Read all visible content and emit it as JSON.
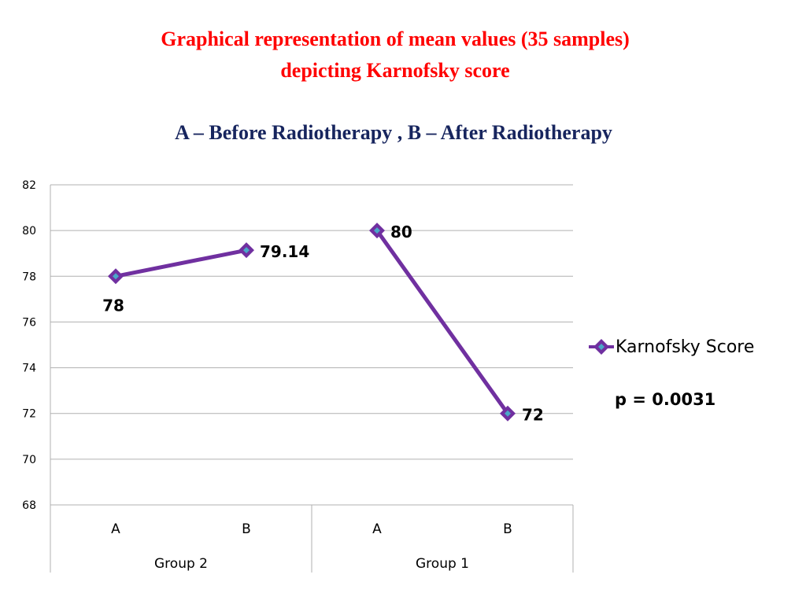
{
  "header": {
    "title_line1": "Graphical representation of mean values (35 samples)",
    "title_line2": "depicting Karnofsky score",
    "subtitle": "A – Before Radiotherapy , B – After Radiotherapy"
  },
  "colors": {
    "title": "#ff0000",
    "subtitle": "#17255e",
    "series_line": "#7030a0",
    "marker_center": "#4aa8c8",
    "gridline": "#b0b0b0"
  },
  "chart_data": {
    "type": "line",
    "ylim": [
      68,
      82
    ],
    "yticks": [
      68,
      70,
      72,
      74,
      76,
      78,
      80,
      82
    ],
    "grid": true,
    "legend_position": "right",
    "groups": [
      {
        "name": "Group 2",
        "categories": [
          "A",
          "B"
        ]
      },
      {
        "name": "Group 1",
        "categories": [
          "A",
          "B"
        ]
      }
    ],
    "series": [
      {
        "name": "Karnofsky Score",
        "segments": [
          {
            "group": "Group 2",
            "values": [
              78,
              79.14
            ],
            "labels": [
              "78",
              "79.14"
            ]
          },
          {
            "group": "Group 1",
            "values": [
              80,
              72
            ],
            "labels": [
              "80",
              "72"
            ]
          }
        ]
      }
    ]
  },
  "annotation": {
    "p_value": "p = 0.0031"
  },
  "icons": {
    "legend_marker": "diamond-marker-icon"
  }
}
